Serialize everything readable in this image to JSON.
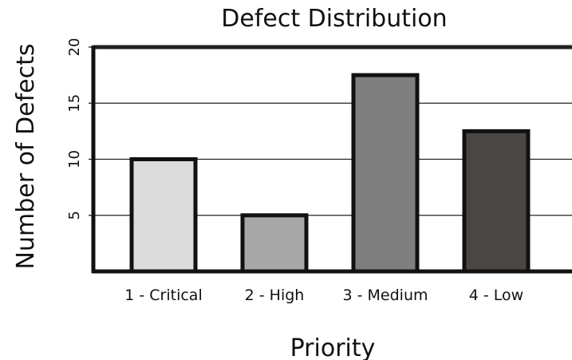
{
  "chart_data": {
    "type": "bar",
    "title": "Defect Distribution",
    "xlabel": "Priority",
    "ylabel": "Number of Defects",
    "categories": [
      "1 - Critical",
      "2 - High",
      "3 - Medium",
      "4 - Low"
    ],
    "values": [
      10,
      5,
      17.5,
      12.5
    ],
    "ylim": [
      0,
      20
    ],
    "yticks": [
      5,
      10,
      15,
      20
    ],
    "grid": true,
    "colors": [
      "#dcdcdc",
      "#a8a8a8",
      "#7f7f7f",
      "#4a4643"
    ],
    "edge_color": "#111111",
    "grid_color": "#222222"
  }
}
